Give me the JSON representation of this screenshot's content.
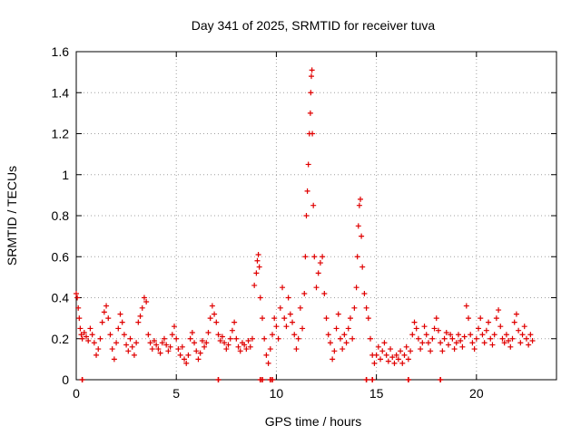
{
  "chart_data": {
    "type": "scatter",
    "title": "Day 341 of 2025, SRMTID for receiver tuva",
    "xlabel": "GPS time / hours",
    "ylabel": "SRMTID / TECUs",
    "xlim": [
      0,
      24
    ],
    "ylim": [
      0,
      1.6
    ],
    "xticks": [
      0,
      5,
      10,
      15,
      20
    ],
    "xtick_labels": [
      "0",
      "5",
      "10",
      "15",
      "20"
    ],
    "yticks": [
      0,
      0.2,
      0.4,
      0.6,
      0.8,
      1,
      1.2,
      1.4,
      1.6
    ],
    "ytick_labels": [
      "0",
      "0.2",
      "0.4",
      "0.6",
      "0.8",
      "1",
      "1.2",
      "1.4",
      "1.6"
    ],
    "grid": true,
    "marker": "+",
    "series": [
      {
        "name": "SRMTID",
        "color": "#e00000",
        "points": [
          [
            0.0,
            0.42
          ],
          [
            0.05,
            0.4
          ],
          [
            0.1,
            0.35
          ],
          [
            0.15,
            0.3
          ],
          [
            0.2,
            0.25
          ],
          [
            0.25,
            0.22
          ],
          [
            0.3,
            0.2
          ],
          [
            0.4,
            0.23
          ],
          [
            0.5,
            0.21
          ],
          [
            0.6,
            0.19
          ],
          [
            0.7,
            0.25
          ],
          [
            0.8,
            0.22
          ],
          [
            0.9,
            0.18
          ],
          [
            1.0,
            0.12
          ],
          [
            1.1,
            0.15
          ],
          [
            1.2,
            0.2
          ],
          [
            1.3,
            0.28
          ],
          [
            1.4,
            0.33
          ],
          [
            1.5,
            0.36
          ],
          [
            1.6,
            0.3
          ],
          [
            1.7,
            0.22
          ],
          [
            1.8,
            0.15
          ],
          [
            1.9,
            0.1
          ],
          [
            2.0,
            0.18
          ],
          [
            2.1,
            0.25
          ],
          [
            2.2,
            0.32
          ],
          [
            2.3,
            0.28
          ],
          [
            2.4,
            0.22
          ],
          [
            2.5,
            0.17
          ],
          [
            2.6,
            0.14
          ],
          [
            2.7,
            0.2
          ],
          [
            2.8,
            0.16
          ],
          [
            2.9,
            0.12
          ],
          [
            3.0,
            0.18
          ],
          [
            3.1,
            0.28
          ],
          [
            3.2,
            0.31
          ],
          [
            3.3,
            0.35
          ],
          [
            3.4,
            0.4
          ],
          [
            3.5,
            0.38
          ],
          [
            3.6,
            0.22
          ],
          [
            3.7,
            0.18
          ],
          [
            3.8,
            0.15
          ],
          [
            3.9,
            0.19
          ],
          [
            4.0,
            0.17
          ],
          [
            4.1,
            0.15
          ],
          [
            4.2,
            0.13
          ],
          [
            4.3,
            0.18
          ],
          [
            4.4,
            0.2
          ],
          [
            4.5,
            0.17
          ],
          [
            4.6,
            0.14
          ],
          [
            4.7,
            0.16
          ],
          [
            4.8,
            0.22
          ],
          [
            4.9,
            0.26
          ],
          [
            5.0,
            0.2
          ],
          [
            5.1,
            0.15
          ],
          [
            5.2,
            0.12
          ],
          [
            5.3,
            0.16
          ],
          [
            5.4,
            0.1
          ],
          [
            5.5,
            0.08
          ],
          [
            5.6,
            0.12
          ],
          [
            5.7,
            0.2
          ],
          [
            5.8,
            0.23
          ],
          [
            5.9,
            0.18
          ],
          [
            6.0,
            0.14
          ],
          [
            6.1,
            0.1
          ],
          [
            6.2,
            0.13
          ],
          [
            6.3,
            0.19
          ],
          [
            6.4,
            0.16
          ],
          [
            6.5,
            0.18
          ],
          [
            6.6,
            0.23
          ],
          [
            6.7,
            0.3
          ],
          [
            6.8,
            0.36
          ],
          [
            6.9,
            0.32
          ],
          [
            7.0,
            0.28
          ],
          [
            7.1,
            0.22
          ],
          [
            7.2,
            0.19
          ],
          [
            7.3,
            0.21
          ],
          [
            7.4,
            0.18
          ],
          [
            7.5,
            0.15
          ],
          [
            7.6,
            0.17
          ],
          [
            7.7,
            0.2
          ],
          [
            7.8,
            0.24
          ],
          [
            7.9,
            0.28
          ],
          [
            8.0,
            0.2
          ],
          [
            8.1,
            0.16
          ],
          [
            8.2,
            0.14
          ],
          [
            8.3,
            0.18
          ],
          [
            8.4,
            0.17
          ],
          [
            8.5,
            0.15
          ],
          [
            8.6,
            0.19
          ],
          [
            8.7,
            0.16
          ],
          [
            8.8,
            0.2
          ],
          [
            8.9,
            0.46
          ],
          [
            9.0,
            0.52
          ],
          [
            9.05,
            0.58
          ],
          [
            9.1,
            0.61
          ],
          [
            9.15,
            0.55
          ],
          [
            9.2,
            0.4
          ],
          [
            9.3,
            0.3
          ],
          [
            9.4,
            0.2
          ],
          [
            9.5,
            0.12
          ],
          [
            9.6,
            0.08
          ],
          [
            9.7,
            0.15
          ],
          [
            9.8,
            0.22
          ],
          [
            9.9,
            0.3
          ],
          [
            10.0,
            0.26
          ],
          [
            10.1,
            0.2
          ],
          [
            10.2,
            0.35
          ],
          [
            10.3,
            0.45
          ],
          [
            10.4,
            0.3
          ],
          [
            10.5,
            0.26
          ],
          [
            10.6,
            0.4
          ],
          [
            10.7,
            0.32
          ],
          [
            10.8,
            0.28
          ],
          [
            10.9,
            0.22
          ],
          [
            11.0,
            0.15
          ],
          [
            11.1,
            0.2
          ],
          [
            11.2,
            0.35
          ],
          [
            11.3,
            0.25
          ],
          [
            11.4,
            0.42
          ],
          [
            11.45,
            0.6
          ],
          [
            11.5,
            0.8
          ],
          [
            11.55,
            0.92
          ],
          [
            11.6,
            1.05
          ],
          [
            11.65,
            1.2
          ],
          [
            11.7,
            1.3
          ],
          [
            11.72,
            1.4
          ],
          [
            11.75,
            1.48
          ],
          [
            11.78,
            1.51
          ],
          [
            11.8,
            1.2
          ],
          [
            11.85,
            0.85
          ],
          [
            11.9,
            0.6
          ],
          [
            12.0,
            0.45
          ],
          [
            12.1,
            0.52
          ],
          [
            12.2,
            0.57
          ],
          [
            12.3,
            0.6
          ],
          [
            12.4,
            0.42
          ],
          [
            12.5,
            0.3
          ],
          [
            12.6,
            0.22
          ],
          [
            12.7,
            0.18
          ],
          [
            12.8,
            0.1
          ],
          [
            12.9,
            0.14
          ],
          [
            13.0,
            0.25
          ],
          [
            13.1,
            0.32
          ],
          [
            13.2,
            0.2
          ],
          [
            13.3,
            0.15
          ],
          [
            13.4,
            0.22
          ],
          [
            13.5,
            0.18
          ],
          [
            13.6,
            0.25
          ],
          [
            13.7,
            0.3
          ],
          [
            13.8,
            0.2
          ],
          [
            13.9,
            0.35
          ],
          [
            14.0,
            0.45
          ],
          [
            14.05,
            0.6
          ],
          [
            14.1,
            0.75
          ],
          [
            14.15,
            0.85
          ],
          [
            14.2,
            0.88
          ],
          [
            14.25,
            0.7
          ],
          [
            14.3,
            0.55
          ],
          [
            14.4,
            0.42
          ],
          [
            14.5,
            0.35
          ],
          [
            14.6,
            0.3
          ],
          [
            14.7,
            0.2
          ],
          [
            14.8,
            0.12
          ],
          [
            14.9,
            0.08
          ],
          [
            15.0,
            0.12
          ],
          [
            15.1,
            0.16
          ],
          [
            15.2,
            0.1
          ],
          [
            15.3,
            0.14
          ],
          [
            15.4,
            0.18
          ],
          [
            15.5,
            0.12
          ],
          [
            15.6,
            0.09
          ],
          [
            15.7,
            0.15
          ],
          [
            15.8,
            0.11
          ],
          [
            15.9,
            0.08
          ],
          [
            16.0,
            0.12
          ],
          [
            16.1,
            0.1
          ],
          [
            16.2,
            0.14
          ],
          [
            16.3,
            0.08
          ],
          [
            16.4,
            0.12
          ],
          [
            16.5,
            0.16
          ],
          [
            16.6,
            0.1
          ],
          [
            16.7,
            0.14
          ],
          [
            16.8,
            0.22
          ],
          [
            16.9,
            0.28
          ],
          [
            17.0,
            0.25
          ],
          [
            17.1,
            0.2
          ],
          [
            17.2,
            0.15
          ],
          [
            17.3,
            0.18
          ],
          [
            17.4,
            0.26
          ],
          [
            17.5,
            0.22
          ],
          [
            17.6,
            0.18
          ],
          [
            17.7,
            0.14
          ],
          [
            17.8,
            0.2
          ],
          [
            17.9,
            0.25
          ],
          [
            18.0,
            0.3
          ],
          [
            18.1,
            0.24
          ],
          [
            18.2,
            0.18
          ],
          [
            18.3,
            0.14
          ],
          [
            18.4,
            0.2
          ],
          [
            18.5,
            0.23
          ],
          [
            18.6,
            0.17
          ],
          [
            18.7,
            0.22
          ],
          [
            18.8,
            0.2
          ],
          [
            18.9,
            0.15
          ],
          [
            19.0,
            0.18
          ],
          [
            19.1,
            0.22
          ],
          [
            19.2,
            0.19
          ],
          [
            19.3,
            0.16
          ],
          [
            19.4,
            0.21
          ],
          [
            19.5,
            0.36
          ],
          [
            19.6,
            0.3
          ],
          [
            19.7,
            0.22
          ],
          [
            19.8,
            0.18
          ],
          [
            19.9,
            0.15
          ],
          [
            20.0,
            0.2
          ],
          [
            20.1,
            0.25
          ],
          [
            20.2,
            0.3
          ],
          [
            20.3,
            0.22
          ],
          [
            20.4,
            0.18
          ],
          [
            20.5,
            0.24
          ],
          [
            20.6,
            0.28
          ],
          [
            20.7,
            0.2
          ],
          [
            20.8,
            0.17
          ],
          [
            20.9,
            0.22
          ],
          [
            21.0,
            0.3
          ],
          [
            21.1,
            0.34
          ],
          [
            21.2,
            0.26
          ],
          [
            21.3,
            0.2
          ],
          [
            21.4,
            0.18
          ],
          [
            21.5,
            0.22
          ],
          [
            21.6,
            0.19
          ],
          [
            21.7,
            0.16
          ],
          [
            21.8,
            0.2
          ],
          [
            21.9,
            0.28
          ],
          [
            22.0,
            0.32
          ],
          [
            22.1,
            0.24
          ],
          [
            22.2,
            0.18
          ],
          [
            22.3,
            0.22
          ],
          [
            22.4,
            0.26
          ],
          [
            22.5,
            0.2
          ],
          [
            22.6,
            0.17
          ],
          [
            22.7,
            0.22
          ],
          [
            22.8,
            0.19
          ]
        ]
      }
    ],
    "zero_markers_x": [
      0.3,
      7.1,
      9.2,
      9.3,
      9.7,
      9.8,
      14.5,
      14.8,
      16.6,
      18.2
    ]
  }
}
